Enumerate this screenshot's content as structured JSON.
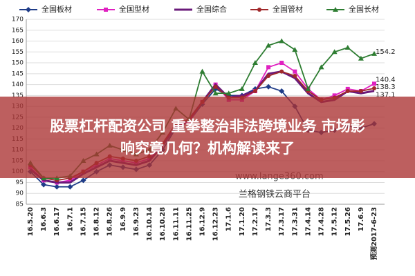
{
  "chart_data": {
    "type": "line",
    "categories": [
      "16.5.20",
      "16.6.3",
      "16.6.17",
      "16.7.1",
      "16.7.15",
      "16.8.12",
      "16.8.26",
      "16.9.9",
      "16.9.23",
      "16.10.14",
      "16.10.28",
      "16.11.11",
      "16.11.25",
      "16.12.9",
      "16.12.23",
      "17.1.6",
      "17.1.20",
      "17.2.17",
      "17.3.3",
      "17.3.17",
      "17.3.31",
      "17.4.14",
      "17.4.28",
      "17.5.12",
      "17.5.26",
      "17.6.9",
      "预测2017-6-23"
    ],
    "series": [
      {
        "name": "全国板材",
        "color": "#1f3c88",
        "marker": "diamond",
        "values": [
          100,
          94,
          93,
          93,
          96,
          100,
          103,
          102,
          101,
          103,
          110,
          120,
          123,
          131,
          138,
          135,
          135,
          138,
          139,
          137,
          130,
          119,
          118,
          119,
          121,
          120,
          122
        ]
      },
      {
        "name": "全国型材",
        "color": "#e020c0",
        "marker": "square",
        "values": [
          102,
          96,
          95,
          96,
          100,
          103,
          106,
          105,
          104,
          106,
          113,
          121,
          123,
          132,
          140,
          133,
          133,
          137,
          148,
          150,
          146,
          138,
          133,
          135,
          138,
          137,
          140.4
        ]
      },
      {
        "name": "全国综合",
        "color": "#6a1a7a",
        "marker": "none",
        "values": [
          101,
          96,
          95,
          95,
          99,
          102,
          105,
          104,
          103,
          105,
          112,
          121,
          124,
          132,
          140,
          134,
          135,
          137,
          145,
          146,
          143,
          136,
          132,
          133,
          137,
          136,
          137.1
        ]
      },
      {
        "name": "全国管材",
        "color": "#a0282a",
        "marker": "circle",
        "values": [
          103,
          97,
          96,
          97,
          100,
          104,
          107,
          106,
          105,
          107,
          113,
          122,
          124,
          132,
          139,
          134,
          134,
          137,
          144,
          146,
          144,
          137,
          133,
          134,
          137,
          137,
          138.3
        ]
      },
      {
        "name": "全国长材",
        "color": "#2e7d32",
        "marker": "triangle",
        "values": [
          104,
          97,
          97,
          98,
          105,
          108,
          112,
          110,
          108,
          110,
          118,
          129,
          124,
          146,
          136,
          136,
          138,
          150,
          158,
          160,
          156,
          138,
          148,
          155,
          157,
          152,
          154.2
        ]
      }
    ],
    "ylim": [
      85,
      170
    ],
    "yticks": [
      85,
      90,
      95,
      100,
      105,
      110,
      115,
      120,
      125,
      130,
      135,
      140,
      145,
      150,
      155,
      160,
      165,
      170
    ],
    "grid": true,
    "annotations": [
      "www.lange360.com",
      "兰格钢铁云商平台",
      "股票杠杆配资公司 重拳整治非法跨境业务 市场影",
      "响究竟几何？机构解读来了"
    ]
  }
}
